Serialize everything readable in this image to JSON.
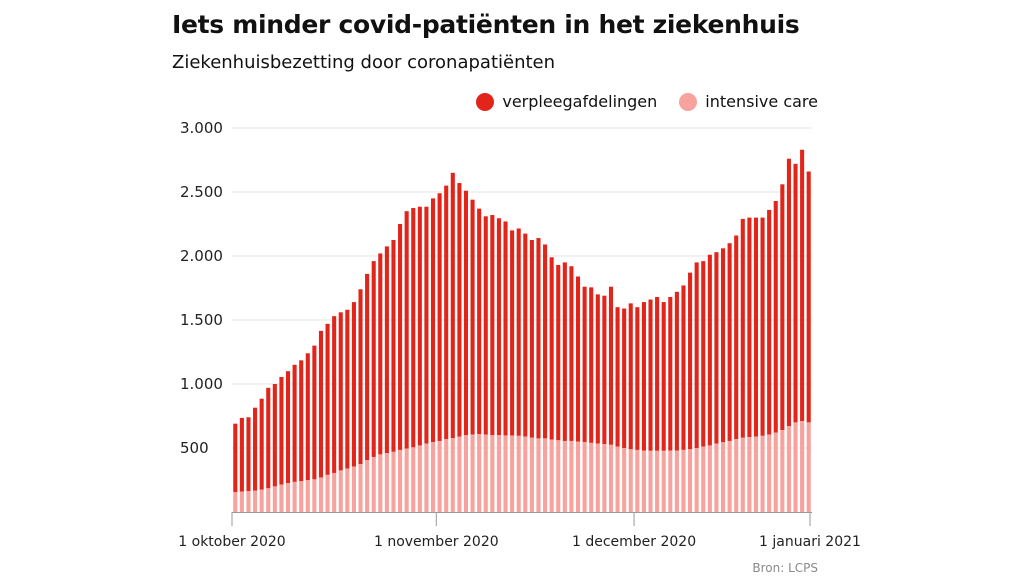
{
  "title": "Iets minder covid-patiënten in het ziekenhuis",
  "subtitle": "Ziekenhuisbezetting door coronapatiënten",
  "source": "Bron: LCPS",
  "colors": {
    "verpleegafdelingen": "#e1251b",
    "intensive_care": "#f7a29c",
    "grid": "#e6e6e6",
    "axis": "#999999"
  },
  "chart_data": {
    "type": "bar",
    "stacked": true,
    "title": "Iets minder covid-patiënten in het ziekenhuis",
    "subtitle": "Ziekenhuisbezetting door coronapatiënten",
    "ylim": [
      0,
      3000
    ],
    "y_ticks": [
      500,
      1000,
      1500,
      2000,
      2500,
      3000
    ],
    "y_tick_labels": [
      "500",
      "1.000",
      "1.500",
      "2.000",
      "2.500",
      "3.000"
    ],
    "x_ticks": [
      {
        "date": "2020-10-01",
        "label": "1 oktober 2020"
      },
      {
        "date": "2020-11-01",
        "label": "1 november 2020"
      },
      {
        "date": "2020-12-01",
        "label": "1 december 2020"
      },
      {
        "date": "2021-01-01",
        "label": "1 januari 2021"
      }
    ],
    "grid": true,
    "legend_position": "top-right",
    "start_date": "2020-10-01",
    "series": [
      {
        "name": "verpleegafdelingen",
        "key": "verpleegafdelingen"
      },
      {
        "name": "intensive care",
        "key": "intensive_care"
      }
    ],
    "totals": [
      690,
      735,
      740,
      815,
      885,
      970,
      1000,
      1055,
      1100,
      1150,
      1185,
      1240,
      1300,
      1415,
      1470,
      1530,
      1560,
      1580,
      1640,
      1740,
      1860,
      1960,
      2020,
      2075,
      2125,
      2250,
      2350,
      2375,
      2385,
      2385,
      2450,
      2490,
      2550,
      2650,
      2570,
      2510,
      2440,
      2370,
      2310,
      2320,
      2295,
      2270,
      2200,
      2215,
      2175,
      2125,
      2140,
      2090,
      1990,
      1930,
      1950,
      1920,
      1840,
      1760,
      1755,
      1700,
      1690,
      1760,
      1600,
      1590,
      1630,
      1600,
      1640,
      1660,
      1680,
      1640,
      1680,
      1720,
      1770,
      1870,
      1950,
      1960,
      2010,
      2030,
      2060,
      2100,
      2160,
      2290,
      2300,
      2300,
      2300,
      2360,
      2430,
      2560,
      2760,
      2720,
      2830,
      2660
    ],
    "intensive_care": [
      155,
      160,
      162,
      168,
      175,
      185,
      200,
      215,
      225,
      235,
      240,
      248,
      255,
      270,
      290,
      305,
      325,
      340,
      355,
      375,
      405,
      430,
      450,
      460,
      470,
      485,
      495,
      505,
      520,
      535,
      545,
      555,
      570,
      578,
      590,
      600,
      605,
      608,
      605,
      600,
      600,
      598,
      597,
      595,
      590,
      580,
      575,
      575,
      565,
      560,
      555,
      555,
      550,
      545,
      540,
      535,
      530,
      525,
      510,
      500,
      490,
      485,
      480,
      478,
      478,
      478,
      480,
      480,
      485,
      490,
      500,
      510,
      520,
      535,
      545,
      555,
      570,
      580,
      585,
      590,
      595,
      605,
      620,
      640,
      670,
      700,
      710,
      700
    ]
  }
}
